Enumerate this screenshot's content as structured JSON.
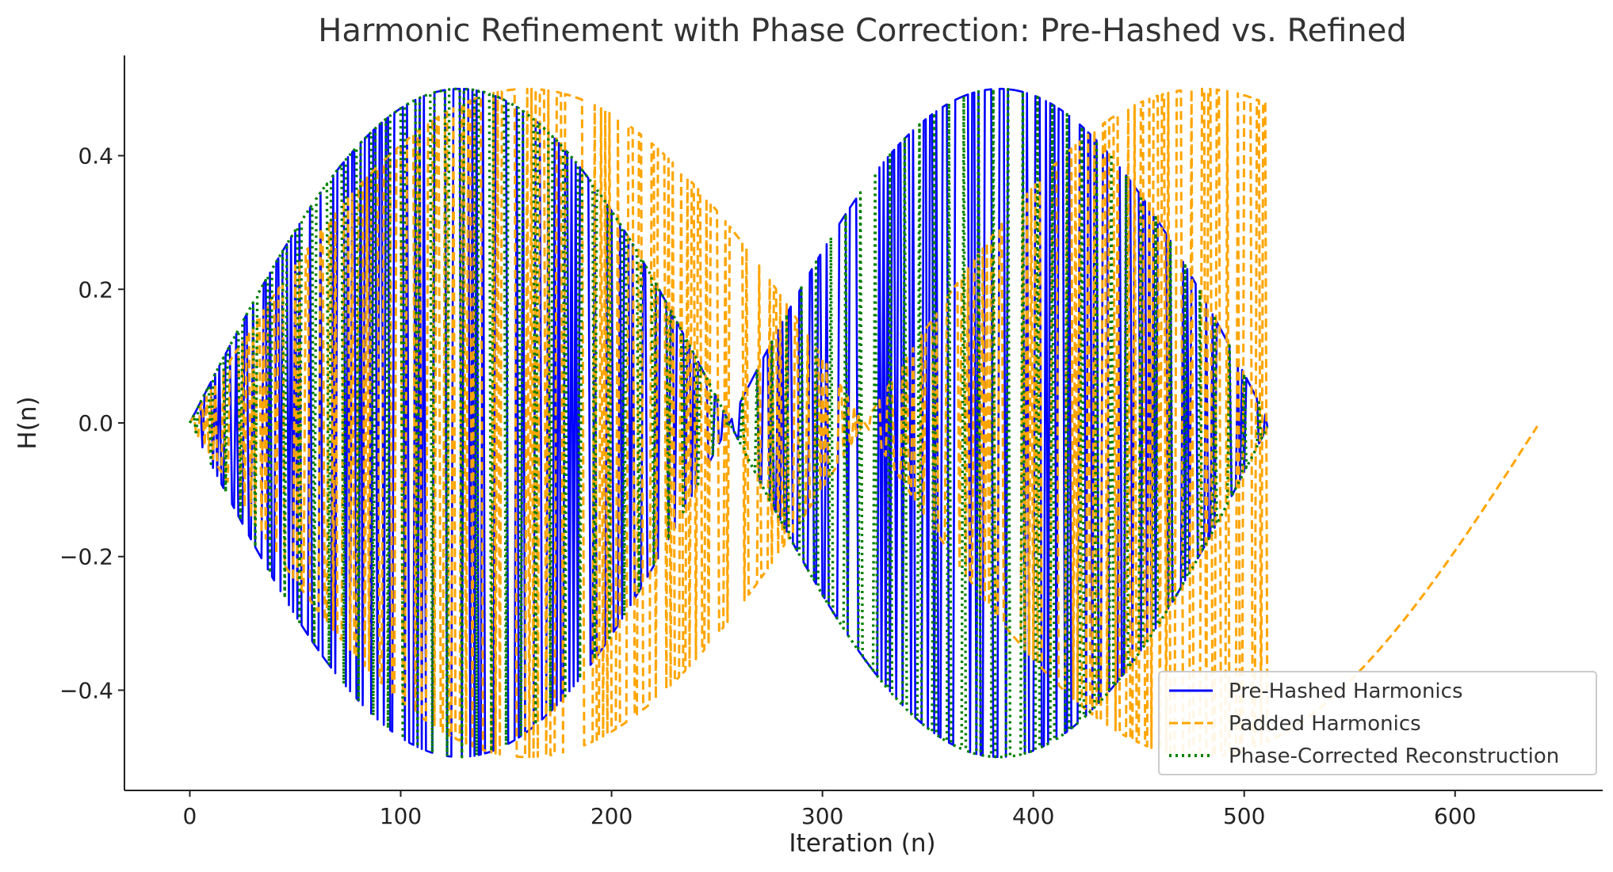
{
  "chart_data": {
    "type": "line",
    "title": "Harmonic Refinement with Phase Correction: Pre-Hashed vs. Refined",
    "xlabel": "Iteration (n)",
    "ylabel": "H(n)",
    "xlim": [
      -31,
      670
    ],
    "ylim": [
      -0.55,
      0.55
    ],
    "xticks": [
      0,
      100,
      200,
      300,
      400,
      500,
      600
    ],
    "yticks": [
      -0.4,
      -0.2,
      0.0,
      0.2,
      0.4
    ],
    "xtick_labels": [
      "0",
      "100",
      "200",
      "300",
      "400",
      "500",
      "600"
    ],
    "ytick_labels": [
      "−0.4",
      "−0.2",
      "0.0",
      "0.2",
      "0.4"
    ],
    "grid": false,
    "legend_position": "bottom-right",
    "legend": [
      "Pre-Hashed Harmonics",
      "Padded Harmonics",
      "Phase-Corrected Reconstruction"
    ],
    "series": [
      {
        "name": "Pre-Hashed Harmonics",
        "color": "#0000ff",
        "style": "solid",
        "n_range": [
          0,
          511
        ],
        "envelope_amplitude": 0.5,
        "envelope_period": 512,
        "description_formula": "0.5*sin(2*pi*n/512) with alternating hashed sign"
      },
      {
        "name": "Padded Harmonics",
        "color": "#ffa500",
        "style": "dashed",
        "n_range": [
          0,
          639
        ],
        "envelope_amplitude": 0.5,
        "envelope_period": 640,
        "dense_until": 511
      },
      {
        "name": "Phase-Corrected Reconstruction",
        "color": "#008000",
        "style": "dotted",
        "n_range": [
          0,
          511
        ],
        "envelope_amplitude": 0.5,
        "envelope_period": 512
      }
    ]
  }
}
